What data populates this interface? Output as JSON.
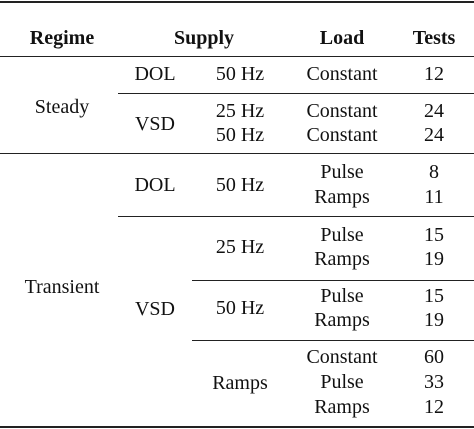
{
  "header": {
    "regime": "Regime",
    "supply": "Supply",
    "load": "Load",
    "tests": "Tests"
  },
  "steady": {
    "regime": "Steady",
    "dol": {
      "supply": "DOL",
      "freq": "50 Hz",
      "loads": [
        "Constant"
      ],
      "tests": [
        "12"
      ]
    },
    "vsd": {
      "supply": "VSD",
      "freqs": [
        "25 Hz",
        "50 Hz"
      ],
      "loads": [
        "Constant",
        "Constant"
      ],
      "tests": [
        "24",
        "24"
      ]
    }
  },
  "transient": {
    "regime": "Transient",
    "dol": {
      "supply": "DOL",
      "freq": "50 Hz",
      "loads": [
        "Pulse",
        "Ramps"
      ],
      "tests": [
        "8",
        "11"
      ]
    },
    "vsd": {
      "supply": "VSD",
      "groups": [
        {
          "freq": "25 Hz",
          "loads": [
            "Pulse",
            "Ramps"
          ],
          "tests": [
            "15",
            "19"
          ]
        },
        {
          "freq": "50 Hz",
          "loads": [
            "Pulse",
            "Ramps"
          ],
          "tests": [
            "15",
            "19"
          ]
        },
        {
          "freq": "Ramps",
          "loads": [
            "Constant",
            "Pulse",
            "Ramps"
          ],
          "tests": [
            "60",
            "33",
            "12"
          ]
        }
      ]
    }
  }
}
